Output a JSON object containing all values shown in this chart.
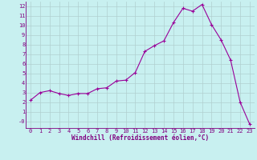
{
  "x": [
    0,
    1,
    2,
    3,
    4,
    5,
    6,
    7,
    8,
    9,
    10,
    11,
    12,
    13,
    14,
    15,
    16,
    17,
    18,
    19,
    20,
    21,
    22,
    23
  ],
  "y": [
    2.2,
    3.0,
    3.2,
    2.9,
    2.7,
    2.9,
    2.9,
    3.4,
    3.5,
    4.2,
    4.3,
    5.1,
    7.3,
    7.9,
    8.4,
    10.3,
    11.8,
    11.5,
    12.2,
    10.1,
    8.5,
    6.4,
    2.0,
    -0.3
  ],
  "line_color": "#990099",
  "marker": "+",
  "marker_size": 3,
  "bg_color": "#c8f0f0",
  "grid_color": "#b0d0d0",
  "xlabel": "Windchill (Refroidissement éolien,°C)",
  "xlabel_color": "#800080",
  "tick_color": "#800080",
  "ylim": [
    -0.7,
    12.5
  ],
  "xlim": [
    -0.5,
    23.5
  ],
  "ytick_vals": [
    0,
    1,
    2,
    3,
    4,
    5,
    6,
    7,
    8,
    9,
    10,
    11,
    12
  ],
  "ytick_labels": [
    "-0",
    "1",
    "2",
    "3",
    "4",
    "5",
    "6",
    "7",
    "8",
    "9",
    "10",
    "11",
    "12"
  ],
  "xtick_vals": [
    0,
    1,
    2,
    3,
    4,
    5,
    6,
    7,
    8,
    9,
    10,
    11,
    12,
    13,
    14,
    15,
    16,
    17,
    18,
    19,
    20,
    21,
    22,
    23
  ],
  "line_width": 0.8,
  "marker_linewidth": 0.8,
  "tick_fontsize": 5,
  "xlabel_fontsize": 5.5
}
